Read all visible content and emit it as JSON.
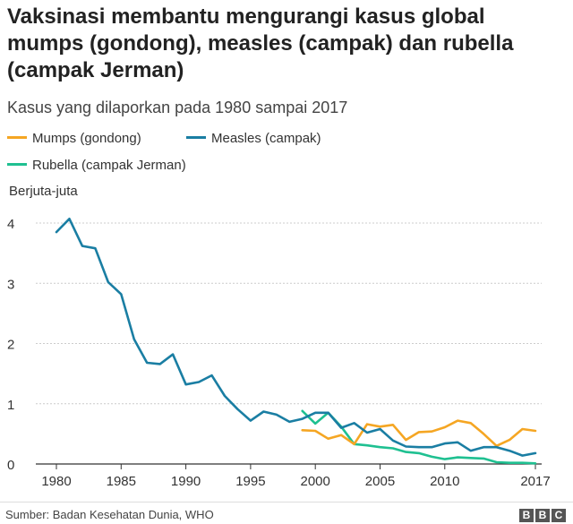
{
  "title": "Vaksinasi membantu mengurangi kasus global mumps (gondong), measles (campak) dan rubella (campak Jerman)",
  "subtitle": "Kasus yang dilaporkan pada 1980 sampai 2017",
  "unit_label": "Berjuta-juta",
  "source": "Sumber: Badan Kesehatan Dunia, WHO",
  "logo": [
    "B",
    "B",
    "C"
  ],
  "colors": {
    "mumps": "#f5a623",
    "measles": "#1a7ea3",
    "rubella": "#1fc091",
    "grid": "#cccccc",
    "axis": "#333333"
  },
  "chart_data": {
    "type": "line",
    "title": "Vaksinasi membantu mengurangi kasus global mumps (gondong), measles (campak) dan rubella (campak Jerman)",
    "subtitle": "Kasus yang dilaporkan pada 1980 sampai 2017",
    "ylabel": "Berjuta-juta",
    "xlabel": "",
    "xlim": [
      1980,
      2017
    ],
    "ylim": [
      0,
      4
    ],
    "xticks": [
      1980,
      1985,
      1990,
      1995,
      2000,
      2005,
      2010,
      2017
    ],
    "yticks": [
      0,
      1,
      2,
      3,
      4
    ],
    "grid": true,
    "legend_position": "top-left",
    "series": [
      {
        "name": "Mumps (gondong)",
        "color": "#f5a623",
        "x": [
          1999,
          2000,
          2001,
          2002,
          2003,
          2004,
          2005,
          2006,
          2007,
          2008,
          2009,
          2010,
          2011,
          2012,
          2013,
          2014,
          2015,
          2016,
          2017
        ],
        "y": [
          0.56,
          0.55,
          0.42,
          0.48,
          0.33,
          0.66,
          0.62,
          0.65,
          0.4,
          0.53,
          0.54,
          0.61,
          0.72,
          0.68,
          0.5,
          0.3,
          0.4,
          0.58,
          0.55
        ]
      },
      {
        "name": "Measles (campak)",
        "color": "#1a7ea3",
        "x": [
          1980,
          1981,
          1982,
          1983,
          1984,
          1985,
          1986,
          1987,
          1988,
          1989,
          1990,
          1991,
          1992,
          1993,
          1994,
          1995,
          1996,
          1997,
          1998,
          1999,
          2000,
          2001,
          2002,
          2003,
          2004,
          2005,
          2006,
          2007,
          2008,
          2009,
          2010,
          2011,
          2012,
          2013,
          2014,
          2015,
          2016,
          2017
        ],
        "y": [
          3.85,
          4.07,
          3.62,
          3.58,
          3.02,
          2.82,
          2.07,
          1.68,
          1.66,
          1.82,
          1.32,
          1.36,
          1.47,
          1.13,
          0.91,
          0.72,
          0.87,
          0.82,
          0.7,
          0.75,
          0.85,
          0.85,
          0.6,
          0.68,
          0.52,
          0.58,
          0.39,
          0.29,
          0.28,
          0.28,
          0.34,
          0.36,
          0.22,
          0.28,
          0.28,
          0.22,
          0.14,
          0.18
        ]
      },
      {
        "name": "Rubella (campak Jerman)",
        "color": "#1fc091",
        "x": [
          1999,
          2000,
          2001,
          2002,
          2003,
          2004,
          2005,
          2006,
          2007,
          2008,
          2009,
          2010,
          2011,
          2012,
          2013,
          2014,
          2015,
          2016,
          2017
        ],
        "y": [
          0.88,
          0.67,
          0.85,
          0.62,
          0.33,
          0.31,
          0.28,
          0.26,
          0.2,
          0.18,
          0.12,
          0.08,
          0.11,
          0.1,
          0.09,
          0.03,
          0.02,
          0.02,
          0.01
        ]
      }
    ]
  }
}
